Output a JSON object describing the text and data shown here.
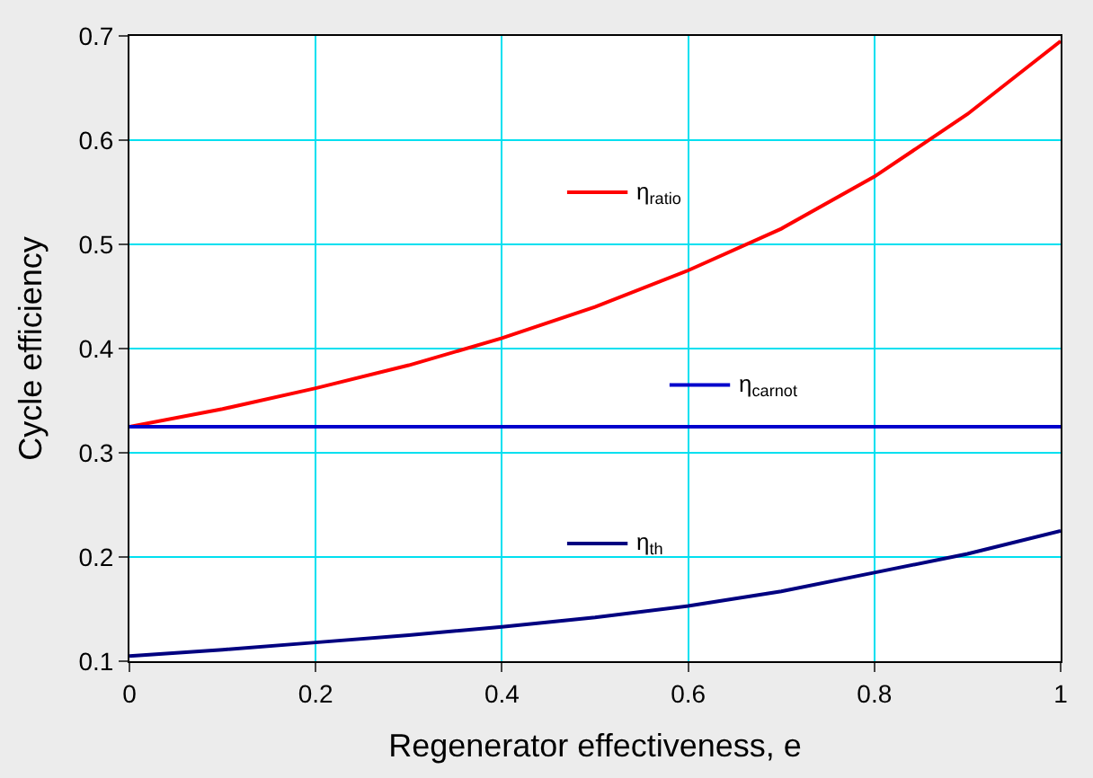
{
  "chart_data": {
    "type": "line",
    "xlabel": "Regenerator effectiveness, e",
    "ylabel": "Cycle efficiency",
    "x": [
      0,
      0.1,
      0.2,
      0.3,
      0.4,
      0.5,
      0.6,
      0.7,
      0.8,
      0.9,
      1
    ],
    "series": [
      {
        "name": "η$_{ratio}$",
        "color": "#ff0000",
        "values": [
          0.325,
          0.342,
          0.362,
          0.384,
          0.41,
          0.44,
          0.475,
          0.515,
          0.565,
          0.625,
          0.695
        ]
      },
      {
        "name": "η$_{carnot}$",
        "color": "#0000cc",
        "values": [
          0.325,
          0.325,
          0.325,
          0.325,
          0.325,
          0.325,
          0.325,
          0.325,
          0.325,
          0.325,
          0.325
        ]
      },
      {
        "name": "η$_{th}$",
        "color": "#000080",
        "values": [
          0.105,
          0.111,
          0.118,
          0.125,
          0.133,
          0.142,
          0.153,
          0.167,
          0.185,
          0.203,
          0.225
        ]
      }
    ],
    "xlim": [
      0,
      1
    ],
    "ylim": [
      0.1,
      0.7
    ],
    "xticks": [
      0,
      0.2,
      0.4,
      0.6,
      0.8,
      1
    ],
    "yticks": [
      0.1,
      0.2,
      0.3,
      0.4,
      0.5,
      0.6,
      0.7
    ],
    "grid": true,
    "legend": "center",
    "marker": "none",
    "line_style": "solid"
  }
}
